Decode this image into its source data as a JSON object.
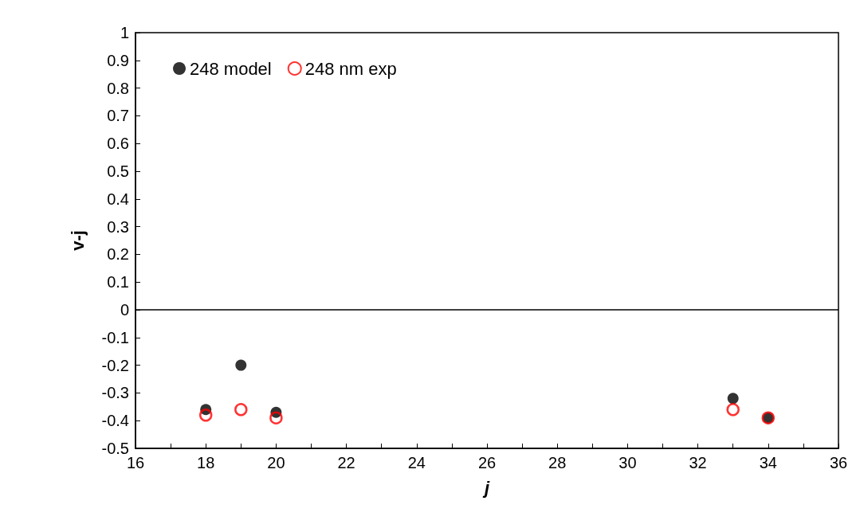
{
  "chart_data": {
    "type": "scatter",
    "xlabel": "j",
    "ylabel": "v-j",
    "x": [
      18,
      19,
      20,
      33,
      34
    ],
    "series": [
      {
        "name": "248 model",
        "color": "#000000",
        "values": [
          -0.36,
          -0.2,
          -0.37,
          -0.32,
          -0.39
        ]
      },
      {
        "name": "248 nm exp",
        "color": "#ff0000",
        "values": [
          -0.38,
          -0.36,
          -0.39,
          -0.36,
          -0.39
        ]
      }
    ],
    "xlim": [
      16,
      36
    ],
    "xticks": [
      16,
      {
        "value": 17,
        "label": null
      },
      18,
      {
        "value": 19,
        "label": null
      },
      20,
      {
        "value": 21,
        "label": null
      },
      22,
      {
        "value": 23,
        "label": null
      },
      24,
      {
        "value": 25,
        "label": null
      },
      26,
      {
        "value": 27,
        "label": null
      },
      28,
      {
        "value": 29,
        "label": null
      },
      30,
      {
        "value": 31,
        "label": null
      },
      32,
      {
        "value": 33,
        "label": null
      },
      34,
      {
        "value": 35,
        "label": null
      },
      36
    ],
    "ylim": [
      -0.5,
      1
    ],
    "yticks": [
      -0.5,
      -0.4,
      -0.3,
      -0.2,
      -0.1,
      0,
      0.1,
      0.2,
      0.3,
      0.4,
      0.5,
      0.6,
      0.7,
      0.8,
      0.9,
      1
    ],
    "ref_lines": [
      {
        "axis": "y",
        "value": 0,
        "color": "#000000"
      }
    ],
    "grid": false,
    "legend": "top left",
    "marker": "circle"
  }
}
